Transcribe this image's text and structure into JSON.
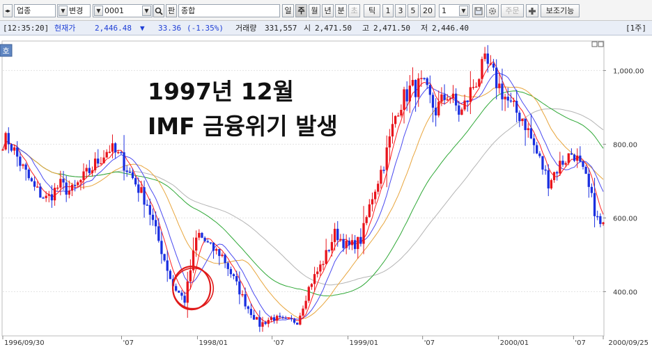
{
  "toolbar": {
    "market": "업종",
    "change": "변경",
    "code": "0001",
    "pan": "판",
    "name": "종합",
    "periods": [
      "일",
      "주",
      "월",
      "년",
      "분",
      "초",
      "틱"
    ],
    "active_period": "주",
    "counts": [
      "1",
      "3",
      "5",
      "20"
    ],
    "count_value": "1",
    "order_label": "주문",
    "aux_label": "보조기능"
  },
  "status": {
    "time": "[12:35:20]",
    "current_label": "현재가",
    "current_value": "2,446.48",
    "change_arrow": "▼",
    "change_value": "33.36",
    "change_pct": "(-1.35%)",
    "volume_label": "거래량",
    "volume_value": "331,557",
    "open_label": "시",
    "open_value": "2,471.50",
    "high_label": "고",
    "high_value": "2,471.50",
    "low_label": "저",
    "low_value": "2,446.40",
    "period_tag": "[1주]"
  },
  "corner_label": "호",
  "annotation": {
    "line1": "1997년 12월",
    "line2": "IMF 금융위기 발생"
  },
  "colors": {
    "up": "#e8141c",
    "down": "#1a2fe0",
    "ma_short": "#ff2020",
    "ma_mid": "#4a4af0",
    "ma_long1": "#e8a53c",
    "ma_long2": "#2ea836",
    "ma_long3": "#b4b4b4",
    "circle": "#e01a1a"
  },
  "chart_data": {
    "type": "candlestick",
    "title": "",
    "x_tick_labels": [
      "1996/09/30",
      "'07",
      "1998/01",
      "'07",
      "1999/01",
      "'07",
      "2000/01",
      "'07",
      "2000/09/25"
    ],
    "x_tick_dates": [
      "1996-09-30",
      "1997-07",
      "1998-01",
      "1998-07",
      "1999-01",
      "1999-07",
      "2000-01",
      "2000-07",
      "2000-09-25"
    ],
    "y_ticks": [
      400,
      600,
      800,
      1000
    ],
    "y_tick_labels": [
      "400.00",
      "600.00",
      "800.00",
      "1,000.00"
    ],
    "ylim": [
      280,
      1080
    ],
    "circle_at": "1997-12",
    "series": [
      {
        "type": "candles",
        "dates": [
          "1996-10",
          "1996-11",
          "1996-12",
          "1997-01",
          "1997-02",
          "1997-03",
          "1997-04",
          "1997-05",
          "1997-06",
          "1997-07",
          "1997-08",
          "1997-09",
          "1997-10",
          "1997-11",
          "1997-12",
          "1998-01",
          "1998-02",
          "1998-03",
          "1998-04",
          "1998-05",
          "1998-06",
          "1998-07",
          "1998-08",
          "1998-09",
          "1998-10",
          "1998-11",
          "1998-12",
          "1999-01",
          "1999-02",
          "1999-03",
          "1999-04",
          "1999-05",
          "1999-06",
          "1999-07",
          "1999-08",
          "1999-09",
          "1999-10",
          "1999-11",
          "1999-12",
          "2000-01",
          "2000-02",
          "2000-03",
          "2000-04",
          "2000-05",
          "2000-06",
          "2000-07",
          "2000-08",
          "2000-09"
        ],
        "close": [
          810,
          740,
          680,
          650,
          690,
          670,
          710,
          750,
          790,
          760,
          700,
          640,
          530,
          420,
          376,
          560,
          520,
          500,
          430,
          360,
          310,
          330,
          320,
          320,
          420,
          480,
          560,
          520,
          540,
          660,
          760,
          900,
          950,
          960,
          890,
          940,
          880,
          960,
          1020,
          960,
          900,
          870,
          780,
          700,
          750,
          780,
          700,
          580
        ]
      }
    ]
  }
}
